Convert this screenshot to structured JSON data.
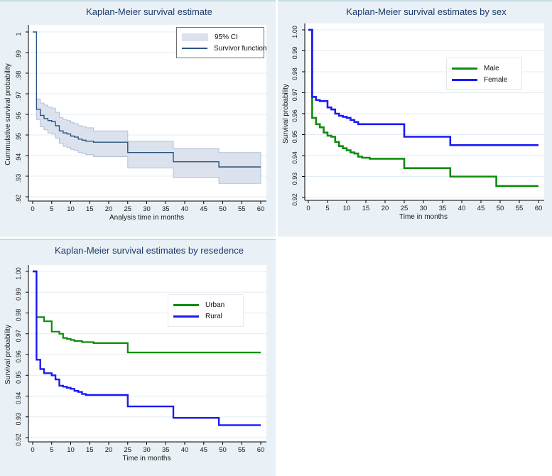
{
  "figure": {
    "background": "#ffffff",
    "panel_background": "#e9f1f6",
    "panel_edge_color": "#c6dce4",
    "plot_area_background": "#ffffff",
    "gridline_color": "#e2ecf4",
    "axis_color": "#000000",
    "tick_text_color": "#1a1a1a",
    "title_color": "#1e3a6b"
  },
  "chart_data": [
    {
      "type": "line",
      "subtype": "kaplan-meier-step",
      "title": "Kaplan-Meier survival estimate",
      "xlabel": "Analysis time in months",
      "ylabel": "Cummulative survival probability",
      "xlim": [
        0,
        60
      ],
      "ylim": [
        0.92,
        1.0
      ],
      "xticks": [
        0,
        5,
        10,
        15,
        20,
        25,
        30,
        35,
        40,
        45,
        50,
        55,
        60
      ],
      "yticks": [
        {
          "v": 1.0,
          "label": "1"
        },
        {
          "v": 0.99,
          "label": ".99"
        },
        {
          "v": 0.98,
          "label": ".98"
        },
        {
          "v": 0.97,
          "label": ".97"
        },
        {
          "v": 0.96,
          "label": ".96"
        },
        {
          "v": 0.95,
          "label": ".95"
        },
        {
          "v": 0.94,
          "label": ".94"
        },
        {
          "v": 0.93,
          "label": ".93"
        },
        {
          "v": 0.92,
          "label": ".92"
        }
      ],
      "grid": "horizontal",
      "legend_position": "inside-top-right",
      "ci_band": {
        "name": "95% CI",
        "fill": "#dbe2ed",
        "edge": "#b3c1d6",
        "upper": [
          [
            1,
            0.9675
          ],
          [
            2,
            0.9655
          ],
          [
            3,
            0.9645
          ],
          [
            4,
            0.9635
          ],
          [
            5,
            0.963
          ],
          [
            6,
            0.961
          ],
          [
            7,
            0.9585
          ],
          [
            8,
            0.9575
          ],
          [
            9,
            0.957
          ],
          [
            10,
            0.956
          ],
          [
            11,
            0.9555
          ],
          [
            12,
            0.9545
          ],
          [
            13,
            0.954
          ],
          [
            14,
            0.9535
          ],
          [
            16,
            0.952
          ],
          [
            25,
            0.947
          ],
          [
            37,
            0.9435
          ],
          [
            49,
            0.9415
          ],
          [
            60,
            0.9415
          ]
        ],
        "lower": [
          [
            1,
            0.9575
          ],
          [
            2,
            0.954
          ],
          [
            3,
            0.9525
          ],
          [
            4,
            0.951
          ],
          [
            5,
            0.9505
          ],
          [
            6,
            0.9485
          ],
          [
            7,
            0.946
          ],
          [
            8,
            0.9445
          ],
          [
            9,
            0.944
          ],
          [
            10,
            0.943
          ],
          [
            11,
            0.9425
          ],
          [
            12,
            0.9415
          ],
          [
            13,
            0.941
          ],
          [
            14,
            0.9405
          ],
          [
            16,
            0.9395
          ],
          [
            25,
            0.934
          ],
          [
            37,
            0.9295
          ],
          [
            49,
            0.9265
          ],
          [
            60,
            0.9265
          ]
        ]
      },
      "series": [
        {
          "name": "Survivor function",
          "color": "#2a5380",
          "width": 1.4,
          "points": [
            [
              0,
              1
            ],
            [
              1,
              0.9625
            ],
            [
              2,
              0.9595
            ],
            [
              3,
              0.958
            ],
            [
              4,
              0.957
            ],
            [
              5,
              0.9565
            ],
            [
              6,
              0.9545
            ],
            [
              7,
              0.952
            ],
            [
              8,
              0.951
            ],
            [
              9,
              0.9505
            ],
            [
              10,
              0.9495
            ],
            [
              11,
              0.949
            ],
            [
              12,
              0.948
            ],
            [
              13,
              0.9475
            ],
            [
              14,
              0.947
            ],
            [
              16,
              0.9465
            ],
            [
              25,
              0.9415
            ],
            [
              37,
              0.937
            ],
            [
              49,
              0.9345
            ],
            [
              60,
              0.9345
            ]
          ]
        }
      ]
    },
    {
      "type": "line",
      "subtype": "kaplan-meier-step",
      "title": "Kaplan-Meier survival estimates by sex",
      "xlabel": "Time in months",
      "ylabel": "Survival probability",
      "xlim": [
        0,
        60
      ],
      "ylim": [
        0.92,
        1.0
      ],
      "xticks": [
        0,
        5,
        10,
        15,
        20,
        25,
        30,
        35,
        40,
        45,
        50,
        55,
        60
      ],
      "yticks": [
        {
          "v": 1.0,
          "label": "1.00"
        },
        {
          "v": 0.99,
          "label": "0.99"
        },
        {
          "v": 0.98,
          "label": "0.98"
        },
        {
          "v": 0.97,
          "label": "0.97"
        },
        {
          "v": 0.96,
          "label": "0.96"
        },
        {
          "v": 0.95,
          "label": "0.95"
        },
        {
          "v": 0.94,
          "label": "0.94"
        },
        {
          "v": 0.93,
          "label": "0.93"
        },
        {
          "v": 0.92,
          "label": "0.92"
        }
      ],
      "grid": "horizontal",
      "legend_position": "inside-middle-right",
      "series": [
        {
          "name": "Male",
          "color": "#0e8c0e",
          "width": 2.6,
          "points": [
            [
              0,
              1
            ],
            [
              1,
              0.958
            ],
            [
              2,
              0.955
            ],
            [
              3,
              0.9535
            ],
            [
              4,
              0.951
            ],
            [
              5,
              0.9495
            ],
            [
              6,
              0.949
            ],
            [
              7,
              0.9465
            ],
            [
              8,
              0.9445
            ],
            [
              9,
              0.9435
            ],
            [
              10,
              0.9425
            ],
            [
              11,
              0.9415
            ],
            [
              12,
              0.941
            ],
            [
              13,
              0.9395
            ],
            [
              14,
              0.939
            ],
            [
              16,
              0.9385
            ],
            [
              25,
              0.934
            ],
            [
              37,
              0.93
            ],
            [
              49,
              0.9255
            ],
            [
              60,
              0.9255
            ]
          ]
        },
        {
          "name": "Female",
          "color": "#1a1af5",
          "width": 2.6,
          "points": [
            [
              0,
              1
            ],
            [
              1,
              0.968
            ],
            [
              2,
              0.9665
            ],
            [
              3,
              0.966
            ],
            [
              5,
              0.963
            ],
            [
              6,
              0.962
            ],
            [
              7,
              0.96
            ],
            [
              8,
              0.959
            ],
            [
              9,
              0.9585
            ],
            [
              10,
              0.958
            ],
            [
              11,
              0.957
            ],
            [
              12,
              0.956
            ],
            [
              13,
              0.955
            ],
            [
              25,
              0.949
            ],
            [
              37,
              0.945
            ],
            [
              60,
              0.945
            ]
          ]
        }
      ]
    },
    {
      "type": "line",
      "subtype": "kaplan-meier-step",
      "title": "Kaplan-Meier survival estimates by resedence",
      "xlabel": "Time in months",
      "ylabel": "Survival probability",
      "xlim": [
        0,
        60
      ],
      "ylim": [
        0.92,
        1.0
      ],
      "xticks": [
        0,
        5,
        10,
        15,
        20,
        25,
        30,
        35,
        40,
        45,
        50,
        55,
        60
      ],
      "yticks": [
        {
          "v": 1.0,
          "label": "1.00"
        },
        {
          "v": 0.99,
          "label": "0.99"
        },
        {
          "v": 0.98,
          "label": "0.98"
        },
        {
          "v": 0.97,
          "label": "0.97"
        },
        {
          "v": 0.96,
          "label": "0.96"
        },
        {
          "v": 0.95,
          "label": "0.95"
        },
        {
          "v": 0.94,
          "label": "0.94"
        },
        {
          "v": 0.93,
          "label": "0.93"
        },
        {
          "v": 0.92,
          "label": "0.92"
        }
      ],
      "grid": "horizontal",
      "legend_position": "inside-middle-right",
      "series": [
        {
          "name": "Urban",
          "color": "#0e8c0e",
          "width": 2.2,
          "points": [
            [
              0,
              1
            ],
            [
              1,
              0.978
            ],
            [
              3,
              0.976
            ],
            [
              5,
              0.971
            ],
            [
              7,
              0.97
            ],
            [
              8,
              0.968
            ],
            [
              9,
              0.9675
            ],
            [
              10,
              0.967
            ],
            [
              11,
              0.9665
            ],
            [
              13,
              0.966
            ],
            [
              16,
              0.9655
            ],
            [
              25,
              0.961
            ],
            [
              60,
              0.961
            ]
          ]
        },
        {
          "name": "Rural",
          "color": "#1a1af5",
          "width": 2.4,
          "points": [
            [
              0,
              1
            ],
            [
              1,
              0.9575
            ],
            [
              2,
              0.953
            ],
            [
              3,
              0.951
            ],
            [
              5,
              0.95
            ],
            [
              6,
              0.948
            ],
            [
              7,
              0.945
            ],
            [
              8,
              0.9445
            ],
            [
              9,
              0.944
            ],
            [
              10,
              0.9435
            ],
            [
              11,
              0.9425
            ],
            [
              12,
              0.942
            ],
            [
              13,
              0.941
            ],
            [
              14,
              0.9405
            ],
            [
              25,
              0.935
            ],
            [
              37,
              0.9295
            ],
            [
              49,
              0.926
            ],
            [
              60,
              0.926
            ]
          ]
        }
      ]
    }
  ]
}
